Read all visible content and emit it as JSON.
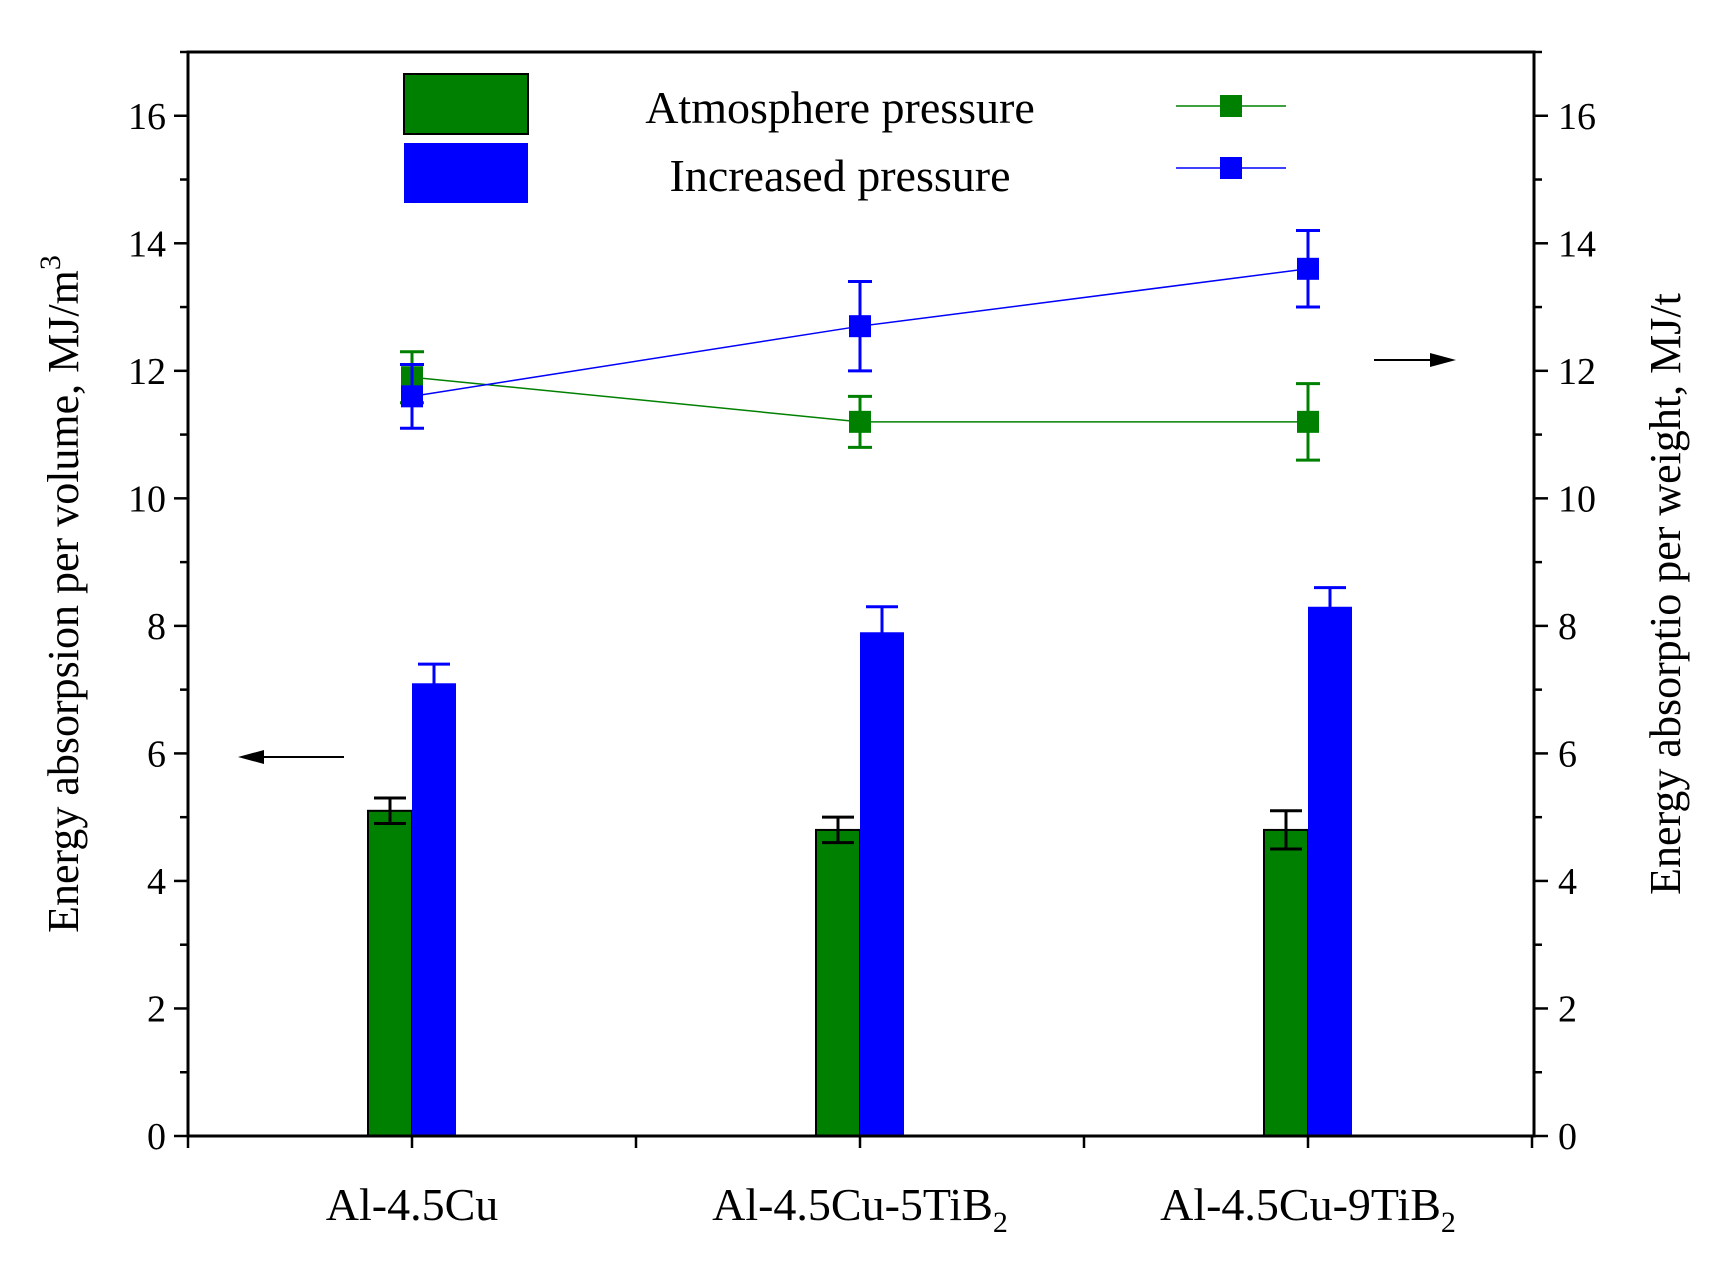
{
  "chart_data": {
    "type": "bar+line",
    "categories": [
      {
        "base": "Al-4.5Cu",
        "sub": ""
      },
      {
        "base": "Al-4.5Cu-5TiB",
        "sub": "2"
      },
      {
        "base": "Al-4.5Cu-9TiB",
        "sub": "2"
      }
    ],
    "left_axis": {
      "title": "Energy absorpsion per volume, MJ/m",
      "title_sup": "3",
      "ylim": [
        0,
        17
      ],
      "major_ticks": [
        0,
        2,
        4,
        6,
        8,
        10,
        12,
        14,
        16
      ],
      "minor_step": 1
    },
    "right_axis": {
      "title": "Energy absorptio per weight, MJ/t",
      "ylim": [
        0,
        17
      ],
      "major_ticks": [
        0,
        2,
        4,
        6,
        8,
        10,
        12,
        14,
        16
      ],
      "minor_step": 1
    },
    "bar_series": [
      {
        "name": "Atmosphere pressure",
        "color": "#008000",
        "values": [
          5.1,
          4.8,
          4.8
        ],
        "errors": [
          0.2,
          0.2,
          0.3
        ],
        "error_color": "#000000"
      },
      {
        "name": "Increased pressure",
        "color": "#0000ff",
        "values": [
          7.1,
          7.9,
          8.3
        ],
        "errors": [
          0.3,
          0.4,
          0.3
        ],
        "error_color": "#0000ff"
      }
    ],
    "line_series": [
      {
        "name": "Atmosphere pressure",
        "color": "#008000",
        "values": [
          11.9,
          11.2,
          11.2
        ],
        "errors": [
          0.4,
          0.4,
          0.6
        ],
        "marker": "square"
      },
      {
        "name": "Increased pressure",
        "color": "#0000ff",
        "values": [
          11.6,
          12.7,
          13.6
        ],
        "errors": [
          0.5,
          0.7,
          0.6
        ],
        "marker": "square"
      }
    ],
    "legend_location": "top-center",
    "axis_arrows": [
      {
        "points_to": "left-axis",
        "at_value": 6
      },
      {
        "points_to": "right-axis",
        "at_value": 12
      }
    ]
  }
}
